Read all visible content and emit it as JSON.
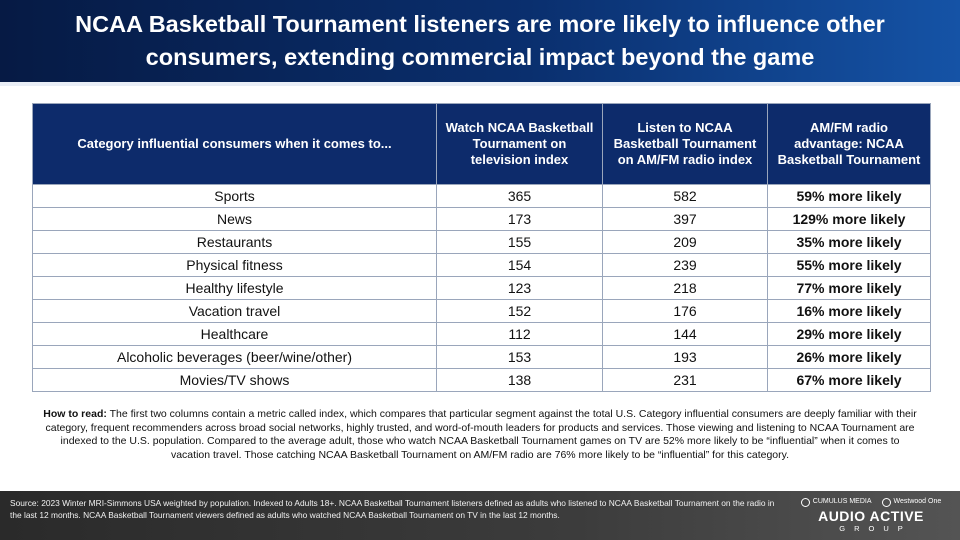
{
  "header": {
    "title_line1": "NCAA Basketball Tournament listeners are more likely to influence other",
    "title_line2": "consumers, extending commercial impact beyond the game"
  },
  "table": {
    "headers": [
      "Category influential consumers when it comes to...",
      "Watch NCAA Basketball Tournament on television index",
      "Listen to NCAA Basketball Tournament on AM/FM radio index",
      "AM/FM radio advantage: NCAA Basketball Tournament"
    ],
    "rows": [
      {
        "category": "Sports",
        "tv": "365",
        "radio": "582",
        "advantage": "59% more likely"
      },
      {
        "category": "News",
        "tv": "173",
        "radio": "397",
        "advantage": "129% more likely"
      },
      {
        "category": "Restaurants",
        "tv": "155",
        "radio": "209",
        "advantage": "35% more likely"
      },
      {
        "category": "Physical fitness",
        "tv": "154",
        "radio": "239",
        "advantage": "55% more likely"
      },
      {
        "category": "Healthy lifestyle",
        "tv": "123",
        "radio": "218",
        "advantage": "77% more likely"
      },
      {
        "category": "Vacation travel",
        "tv": "152",
        "radio": "176",
        "advantage": "16% more likely"
      },
      {
        "category": "Healthcare",
        "tv": "112",
        "radio": "144",
        "advantage": "29% more likely"
      },
      {
        "category": "Alcoholic beverages (beer/wine/other)",
        "tv": "153",
        "radio": "193",
        "advantage": "26% more likely"
      },
      {
        "category": "Movies/TV shows",
        "tv": "138",
        "radio": "231",
        "advantage": "67% more likely"
      }
    ]
  },
  "howto": {
    "label": "How to read:",
    "text": " The first two columns contain a metric called index, which compares that particular segment against the total U.S. Category influential consumers are deeply familiar with their category, frequent recommenders across broad social networks, highly trusted, and word-of-mouth leaders for products and services. Those viewing and listening to NCAA Tournament  are indexed to the U.S. population. Compared  to the average adult, those who watch NCAA Basketball Tournament games on TV are 52% more likely to be “influential” when it comes to vacation travel. Those catching NCAA Basketball Tournament  on AM/FM radio are 76% more likely to be  “influential” for this category."
  },
  "footer": {
    "source": "Source:  2023 Winter MRI-Simmons  USA weighted by population.   Indexed to Adults 18+. NCAA Basketball Tournament   listeners defined as adults who listened to NCAA Basketball Tournament   on the radio in the last 12 months.  NCAA Basketball Tournament    viewers defined as adults who watched NCAA Basketball Tournament   on TV in the last 12 months.",
    "logo_left": "CUMULUS MEDIA",
    "logo_right": "Westwood One",
    "brand": "AUDIO ACTIVE",
    "brand_sub": "GROUP"
  },
  "colors": {
    "header_dark": "#061a44",
    "header_light": "#1553a6",
    "table_header": "#0d2b6b",
    "footer": "#3c3c3c"
  }
}
